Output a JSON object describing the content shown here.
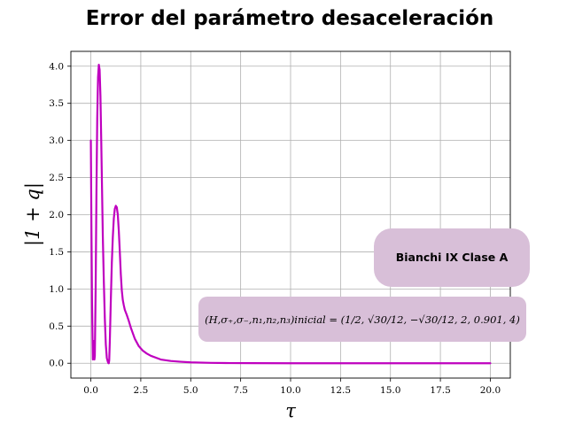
{
  "chart_data": {
    "type": "line",
    "title": "Error del parámetro desaceleración",
    "xlabel": "τ",
    "ylabel": "|1 + q|",
    "xlim": [
      -1.0,
      21.0
    ],
    "ylim": [
      -0.2,
      4.2
    ],
    "xticks": [
      0.0,
      2.5,
      5.0,
      7.5,
      10.0,
      12.5,
      15.0,
      17.5,
      20.0
    ],
    "xtick_labels": [
      "0.0",
      "2.5",
      "5.0",
      "7.5",
      "10.0",
      "12.5",
      "15.0",
      "17.5",
      "20.0"
    ],
    "yticks": [
      0.0,
      0.5,
      1.0,
      1.5,
      2.0,
      2.5,
      3.0,
      3.5,
      4.0
    ],
    "ytick_labels": [
      "0.0",
      "0.5",
      "1.0",
      "1.5",
      "2.0",
      "2.5",
      "3.0",
      "3.5",
      "4.0"
    ],
    "grid": true,
    "line_color": "#bf00bf",
    "series": [
      {
        "x": [
          0.0,
          0.03,
          0.06,
          0.1,
          0.14,
          0.18,
          0.2,
          0.24,
          0.28,
          0.32,
          0.36,
          0.4,
          0.44,
          0.48,
          0.52,
          0.56,
          0.6,
          0.65,
          0.7,
          0.75,
          0.8,
          0.85,
          0.88,
          0.9,
          0.92,
          0.95,
          1.0,
          1.05,
          1.1,
          1.15,
          1.2,
          1.25,
          1.3,
          1.35,
          1.4,
          1.45,
          1.5,
          1.55,
          1.6,
          1.65,
          1.7,
          1.8,
          1.9,
          2.0,
          2.2,
          2.4,
          2.6,
          2.8,
          3.0,
          3.5,
          4.0,
          4.5,
          5.0,
          6.0,
          7.0,
          8.0,
          10.0,
          12.0,
          15.0,
          20.0
        ],
        "y": [
          3.0,
          1.8,
          0.8,
          0.05,
          0.3,
          0.05,
          0.1,
          1.0,
          2.3,
          3.3,
          3.85,
          4.02,
          3.95,
          3.6,
          3.0,
          2.35,
          1.7,
          1.1,
          0.6,
          0.25,
          0.07,
          0.02,
          0.0,
          0.0,
          0.04,
          0.3,
          0.85,
          1.35,
          1.7,
          1.95,
          2.08,
          2.12,
          2.1,
          2.0,
          1.78,
          1.5,
          1.2,
          0.98,
          0.85,
          0.78,
          0.72,
          0.65,
          0.57,
          0.48,
          0.33,
          0.23,
          0.17,
          0.13,
          0.1,
          0.05,
          0.03,
          0.02,
          0.012,
          0.005,
          0.002,
          0.001,
          0.0,
          0.0,
          0.0,
          0.0
        ]
      }
    ],
    "annotations": [
      {
        "text": "Bianchi IX Clase A",
        "box_color": "#d8bfd8"
      },
      {
        "text": "(H,σ₊,σ₋,n₁,n₂,n₃)inicial = (1/2, √30/12, −√30/12, 2, 0.901, 4)",
        "box_color": "#d8bfd8"
      }
    ]
  }
}
